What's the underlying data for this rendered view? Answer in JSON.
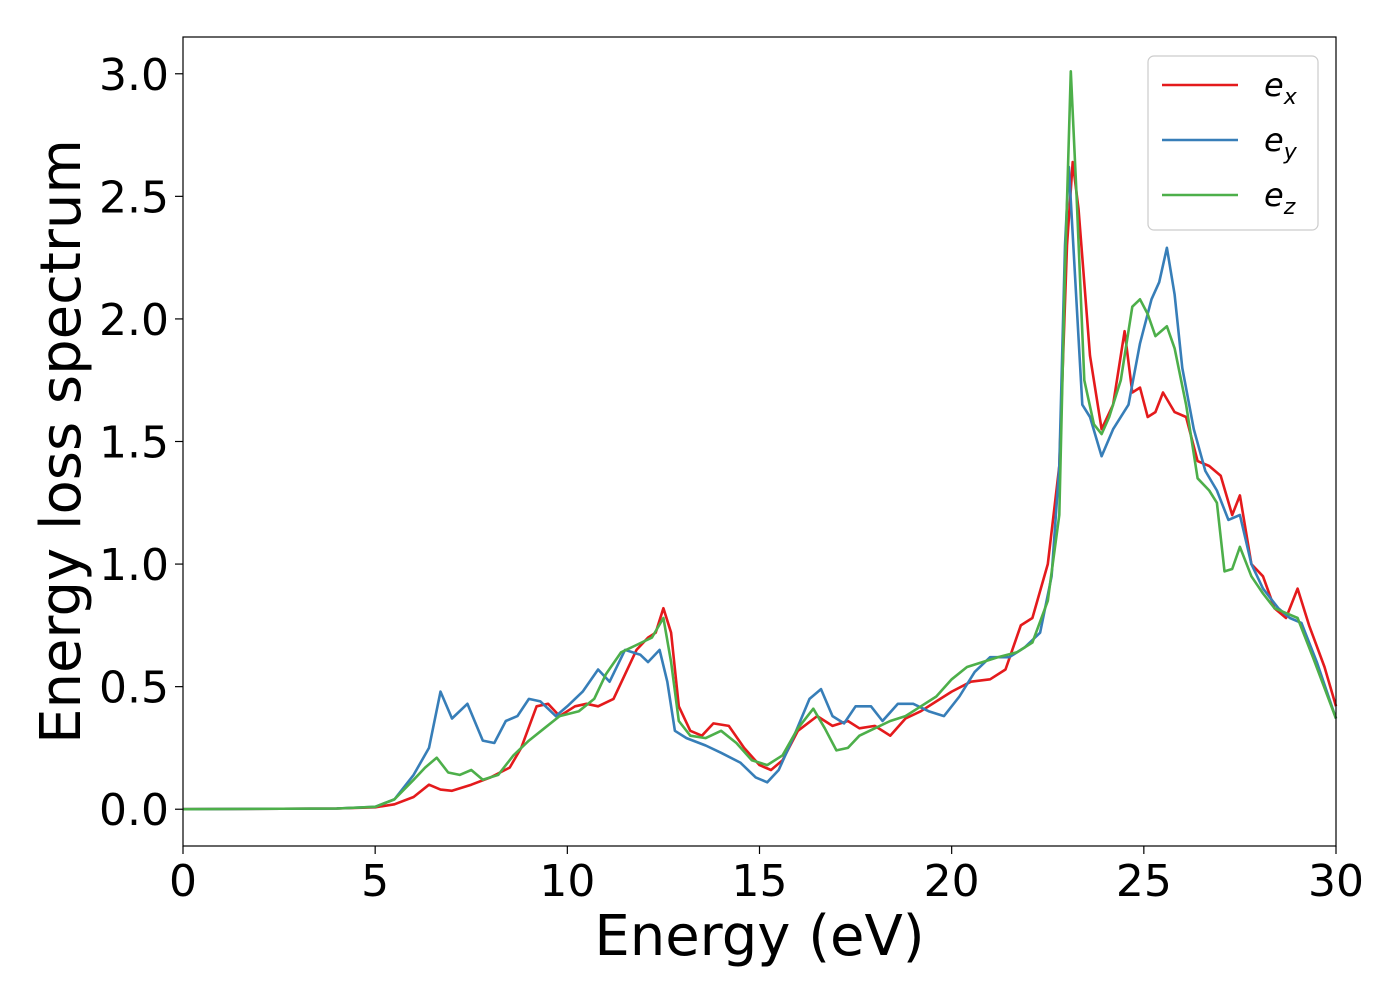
{
  "chart_data": {
    "type": "line",
    "xlabel": "Energy (eV)",
    "ylabel": "Energy loss spectrum",
    "xlim": [
      0,
      30
    ],
    "ylim": [
      -0.15,
      3.15
    ],
    "xticks": [
      0,
      5,
      10,
      15,
      20,
      25,
      30
    ],
    "xtick_labels": [
      "0",
      "5",
      "10",
      "15",
      "20",
      "25",
      "30"
    ],
    "yticks": [
      0.0,
      0.5,
      1.0,
      1.5,
      2.0,
      2.5,
      3.0
    ],
    "ytick_labels": [
      "0.0",
      "0.5",
      "1.0",
      "1.5",
      "2.0",
      "2.5",
      "3.0"
    ],
    "grid": false,
    "legend_position": "top-right",
    "series": [
      {
        "name_base": "e",
        "name_sub": "x",
        "color": "#e41a1c",
        "points": [
          [
            0,
            0.0
          ],
          [
            4,
            0.003
          ],
          [
            5,
            0.008
          ],
          [
            5.5,
            0.02
          ],
          [
            6,
            0.05
          ],
          [
            6.4,
            0.1
          ],
          [
            6.7,
            0.08
          ],
          [
            7,
            0.075
          ],
          [
            7.5,
            0.1
          ],
          [
            8,
            0.13
          ],
          [
            8.5,
            0.17
          ],
          [
            8.8,
            0.25
          ],
          [
            9.2,
            0.42
          ],
          [
            9.5,
            0.43
          ],
          [
            9.8,
            0.38
          ],
          [
            10.2,
            0.42
          ],
          [
            10.5,
            0.43
          ],
          [
            10.8,
            0.42
          ],
          [
            11.2,
            0.45
          ],
          [
            11.5,
            0.55
          ],
          [
            11.8,
            0.65
          ],
          [
            12.1,
            0.7
          ],
          [
            12.3,
            0.72
          ],
          [
            12.5,
            0.82
          ],
          [
            12.7,
            0.72
          ],
          [
            12.9,
            0.42
          ],
          [
            13.2,
            0.32
          ],
          [
            13.5,
            0.3
          ],
          [
            13.8,
            0.35
          ],
          [
            14.2,
            0.34
          ],
          [
            14.6,
            0.25
          ],
          [
            15,
            0.18
          ],
          [
            15.3,
            0.16
          ],
          [
            15.6,
            0.2
          ],
          [
            16,
            0.32
          ],
          [
            16.5,
            0.38
          ],
          [
            16.9,
            0.34
          ],
          [
            17.3,
            0.36
          ],
          [
            17.6,
            0.33
          ],
          [
            18,
            0.34
          ],
          [
            18.4,
            0.3
          ],
          [
            18.8,
            0.37
          ],
          [
            19.2,
            0.4
          ],
          [
            19.6,
            0.44
          ],
          [
            20,
            0.48
          ],
          [
            20.5,
            0.52
          ],
          [
            21,
            0.53
          ],
          [
            21.4,
            0.57
          ],
          [
            21.8,
            0.75
          ],
          [
            22.1,
            0.78
          ],
          [
            22.5,
            1.0
          ],
          [
            22.8,
            1.4
          ],
          [
            23,
            2.3
          ],
          [
            23.15,
            2.64
          ],
          [
            23.3,
            2.45
          ],
          [
            23.6,
            1.85
          ],
          [
            23.9,
            1.55
          ],
          [
            24.2,
            1.65
          ],
          [
            24.5,
            1.95
          ],
          [
            24.7,
            1.7
          ],
          [
            24.9,
            1.72
          ],
          [
            25.1,
            1.6
          ],
          [
            25.3,
            1.62
          ],
          [
            25.5,
            1.7
          ],
          [
            25.8,
            1.62
          ],
          [
            26.1,
            1.6
          ],
          [
            26.4,
            1.42
          ],
          [
            26.7,
            1.4
          ],
          [
            27,
            1.36
          ],
          [
            27.3,
            1.2
          ],
          [
            27.5,
            1.28
          ],
          [
            27.8,
            1.0
          ],
          [
            28.1,
            0.95
          ],
          [
            28.4,
            0.82
          ],
          [
            28.7,
            0.78
          ],
          [
            29,
            0.9
          ],
          [
            29.3,
            0.75
          ],
          [
            29.7,
            0.58
          ],
          [
            30,
            0.42
          ]
        ]
      },
      {
        "name_base": "e",
        "name_sub": "y",
        "color": "#377eb8",
        "points": [
          [
            0,
            0.0
          ],
          [
            4,
            0.003
          ],
          [
            5,
            0.01
          ],
          [
            5.5,
            0.04
          ],
          [
            6,
            0.14
          ],
          [
            6.4,
            0.25
          ],
          [
            6.7,
            0.48
          ],
          [
            7,
            0.37
          ],
          [
            7.4,
            0.43
          ],
          [
            7.8,
            0.28
          ],
          [
            8.1,
            0.27
          ],
          [
            8.4,
            0.36
          ],
          [
            8.7,
            0.38
          ],
          [
            9,
            0.45
          ],
          [
            9.3,
            0.44
          ],
          [
            9.7,
            0.38
          ],
          [
            10,
            0.42
          ],
          [
            10.4,
            0.48
          ],
          [
            10.8,
            0.57
          ],
          [
            11.1,
            0.52
          ],
          [
            11.5,
            0.65
          ],
          [
            11.9,
            0.63
          ],
          [
            12.1,
            0.6
          ],
          [
            12.4,
            0.65
          ],
          [
            12.6,
            0.52
          ],
          [
            12.8,
            0.32
          ],
          [
            13.1,
            0.29
          ],
          [
            13.6,
            0.26
          ],
          [
            14,
            0.23
          ],
          [
            14.5,
            0.19
          ],
          [
            14.9,
            0.13
          ],
          [
            15.2,
            0.11
          ],
          [
            15.5,
            0.16
          ],
          [
            15.9,
            0.3
          ],
          [
            16.3,
            0.45
          ],
          [
            16.6,
            0.49
          ],
          [
            16.9,
            0.38
          ],
          [
            17.2,
            0.35
          ],
          [
            17.5,
            0.42
          ],
          [
            17.9,
            0.42
          ],
          [
            18.2,
            0.36
          ],
          [
            18.6,
            0.43
          ],
          [
            19,
            0.43
          ],
          [
            19.4,
            0.4
          ],
          [
            19.8,
            0.38
          ],
          [
            20.2,
            0.46
          ],
          [
            20.6,
            0.56
          ],
          [
            21,
            0.62
          ],
          [
            21.5,
            0.62
          ],
          [
            21.9,
            0.66
          ],
          [
            22.3,
            0.72
          ],
          [
            22.6,
            0.95
          ],
          [
            22.8,
            1.4
          ],
          [
            22.95,
            2.3
          ],
          [
            23.05,
            2.62
          ],
          [
            23.2,
            2.2
          ],
          [
            23.4,
            1.65
          ],
          [
            23.6,
            1.6
          ],
          [
            23.9,
            1.44
          ],
          [
            24.2,
            1.55
          ],
          [
            24.6,
            1.65
          ],
          [
            24.9,
            1.9
          ],
          [
            25.2,
            2.08
          ],
          [
            25.4,
            2.15
          ],
          [
            25.6,
            2.29
          ],
          [
            25.8,
            2.1
          ],
          [
            26,
            1.8
          ],
          [
            26.3,
            1.55
          ],
          [
            26.6,
            1.38
          ],
          [
            26.9,
            1.3
          ],
          [
            27.2,
            1.18
          ],
          [
            27.5,
            1.2
          ],
          [
            27.8,
            1.0
          ],
          [
            28.1,
            0.9
          ],
          [
            28.5,
            0.82
          ],
          [
            28.8,
            0.78
          ],
          [
            29.1,
            0.76
          ],
          [
            29.5,
            0.6
          ],
          [
            30,
            0.37
          ]
        ]
      },
      {
        "name_base": "e",
        "name_sub": "z",
        "color": "#4daf4a",
        "points": [
          [
            0,
            0.0
          ],
          [
            4,
            0.003
          ],
          [
            5,
            0.01
          ],
          [
            5.5,
            0.04
          ],
          [
            6,
            0.12
          ],
          [
            6.3,
            0.17
          ],
          [
            6.6,
            0.21
          ],
          [
            6.9,
            0.15
          ],
          [
            7.2,
            0.14
          ],
          [
            7.5,
            0.16
          ],
          [
            7.8,
            0.12
          ],
          [
            8.2,
            0.14
          ],
          [
            8.6,
            0.22
          ],
          [
            9,
            0.28
          ],
          [
            9.4,
            0.33
          ],
          [
            9.8,
            0.38
          ],
          [
            10.3,
            0.4
          ],
          [
            10.7,
            0.45
          ],
          [
            11,
            0.55
          ],
          [
            11.4,
            0.64
          ],
          [
            11.8,
            0.67
          ],
          [
            12.2,
            0.7
          ],
          [
            12.5,
            0.78
          ],
          [
            12.7,
            0.6
          ],
          [
            12.9,
            0.36
          ],
          [
            13.2,
            0.3
          ],
          [
            13.6,
            0.29
          ],
          [
            14,
            0.32
          ],
          [
            14.4,
            0.27
          ],
          [
            14.8,
            0.2
          ],
          [
            15.2,
            0.18
          ],
          [
            15.6,
            0.22
          ],
          [
            16,
            0.33
          ],
          [
            16.4,
            0.41
          ],
          [
            16.7,
            0.33
          ],
          [
            17,
            0.24
          ],
          [
            17.3,
            0.25
          ],
          [
            17.6,
            0.3
          ],
          [
            18,
            0.33
          ],
          [
            18.4,
            0.36
          ],
          [
            18.8,
            0.38
          ],
          [
            19.2,
            0.42
          ],
          [
            19.6,
            0.46
          ],
          [
            20,
            0.53
          ],
          [
            20.4,
            0.58
          ],
          [
            20.8,
            0.6
          ],
          [
            21.2,
            0.62
          ],
          [
            21.7,
            0.64
          ],
          [
            22.1,
            0.68
          ],
          [
            22.5,
            0.85
          ],
          [
            22.8,
            1.2
          ],
          [
            22.95,
            2.2
          ],
          [
            23.1,
            3.01
          ],
          [
            23.25,
            2.5
          ],
          [
            23.45,
            1.75
          ],
          [
            23.7,
            1.57
          ],
          [
            23.9,
            1.53
          ],
          [
            24.1,
            1.6
          ],
          [
            24.4,
            1.75
          ],
          [
            24.7,
            2.05
          ],
          [
            24.9,
            2.08
          ],
          [
            25.1,
            2.02
          ],
          [
            25.3,
            1.93
          ],
          [
            25.6,
            1.97
          ],
          [
            25.8,
            1.88
          ],
          [
            26.1,
            1.65
          ],
          [
            26.4,
            1.35
          ],
          [
            26.7,
            1.3
          ],
          [
            26.9,
            1.25
          ],
          [
            27.1,
            0.97
          ],
          [
            27.3,
            0.98
          ],
          [
            27.5,
            1.07
          ],
          [
            27.8,
            0.95
          ],
          [
            28.1,
            0.88
          ],
          [
            28.4,
            0.82
          ],
          [
            28.7,
            0.8
          ],
          [
            29,
            0.78
          ],
          [
            29.4,
            0.62
          ],
          [
            30,
            0.37
          ]
        ]
      }
    ]
  }
}
